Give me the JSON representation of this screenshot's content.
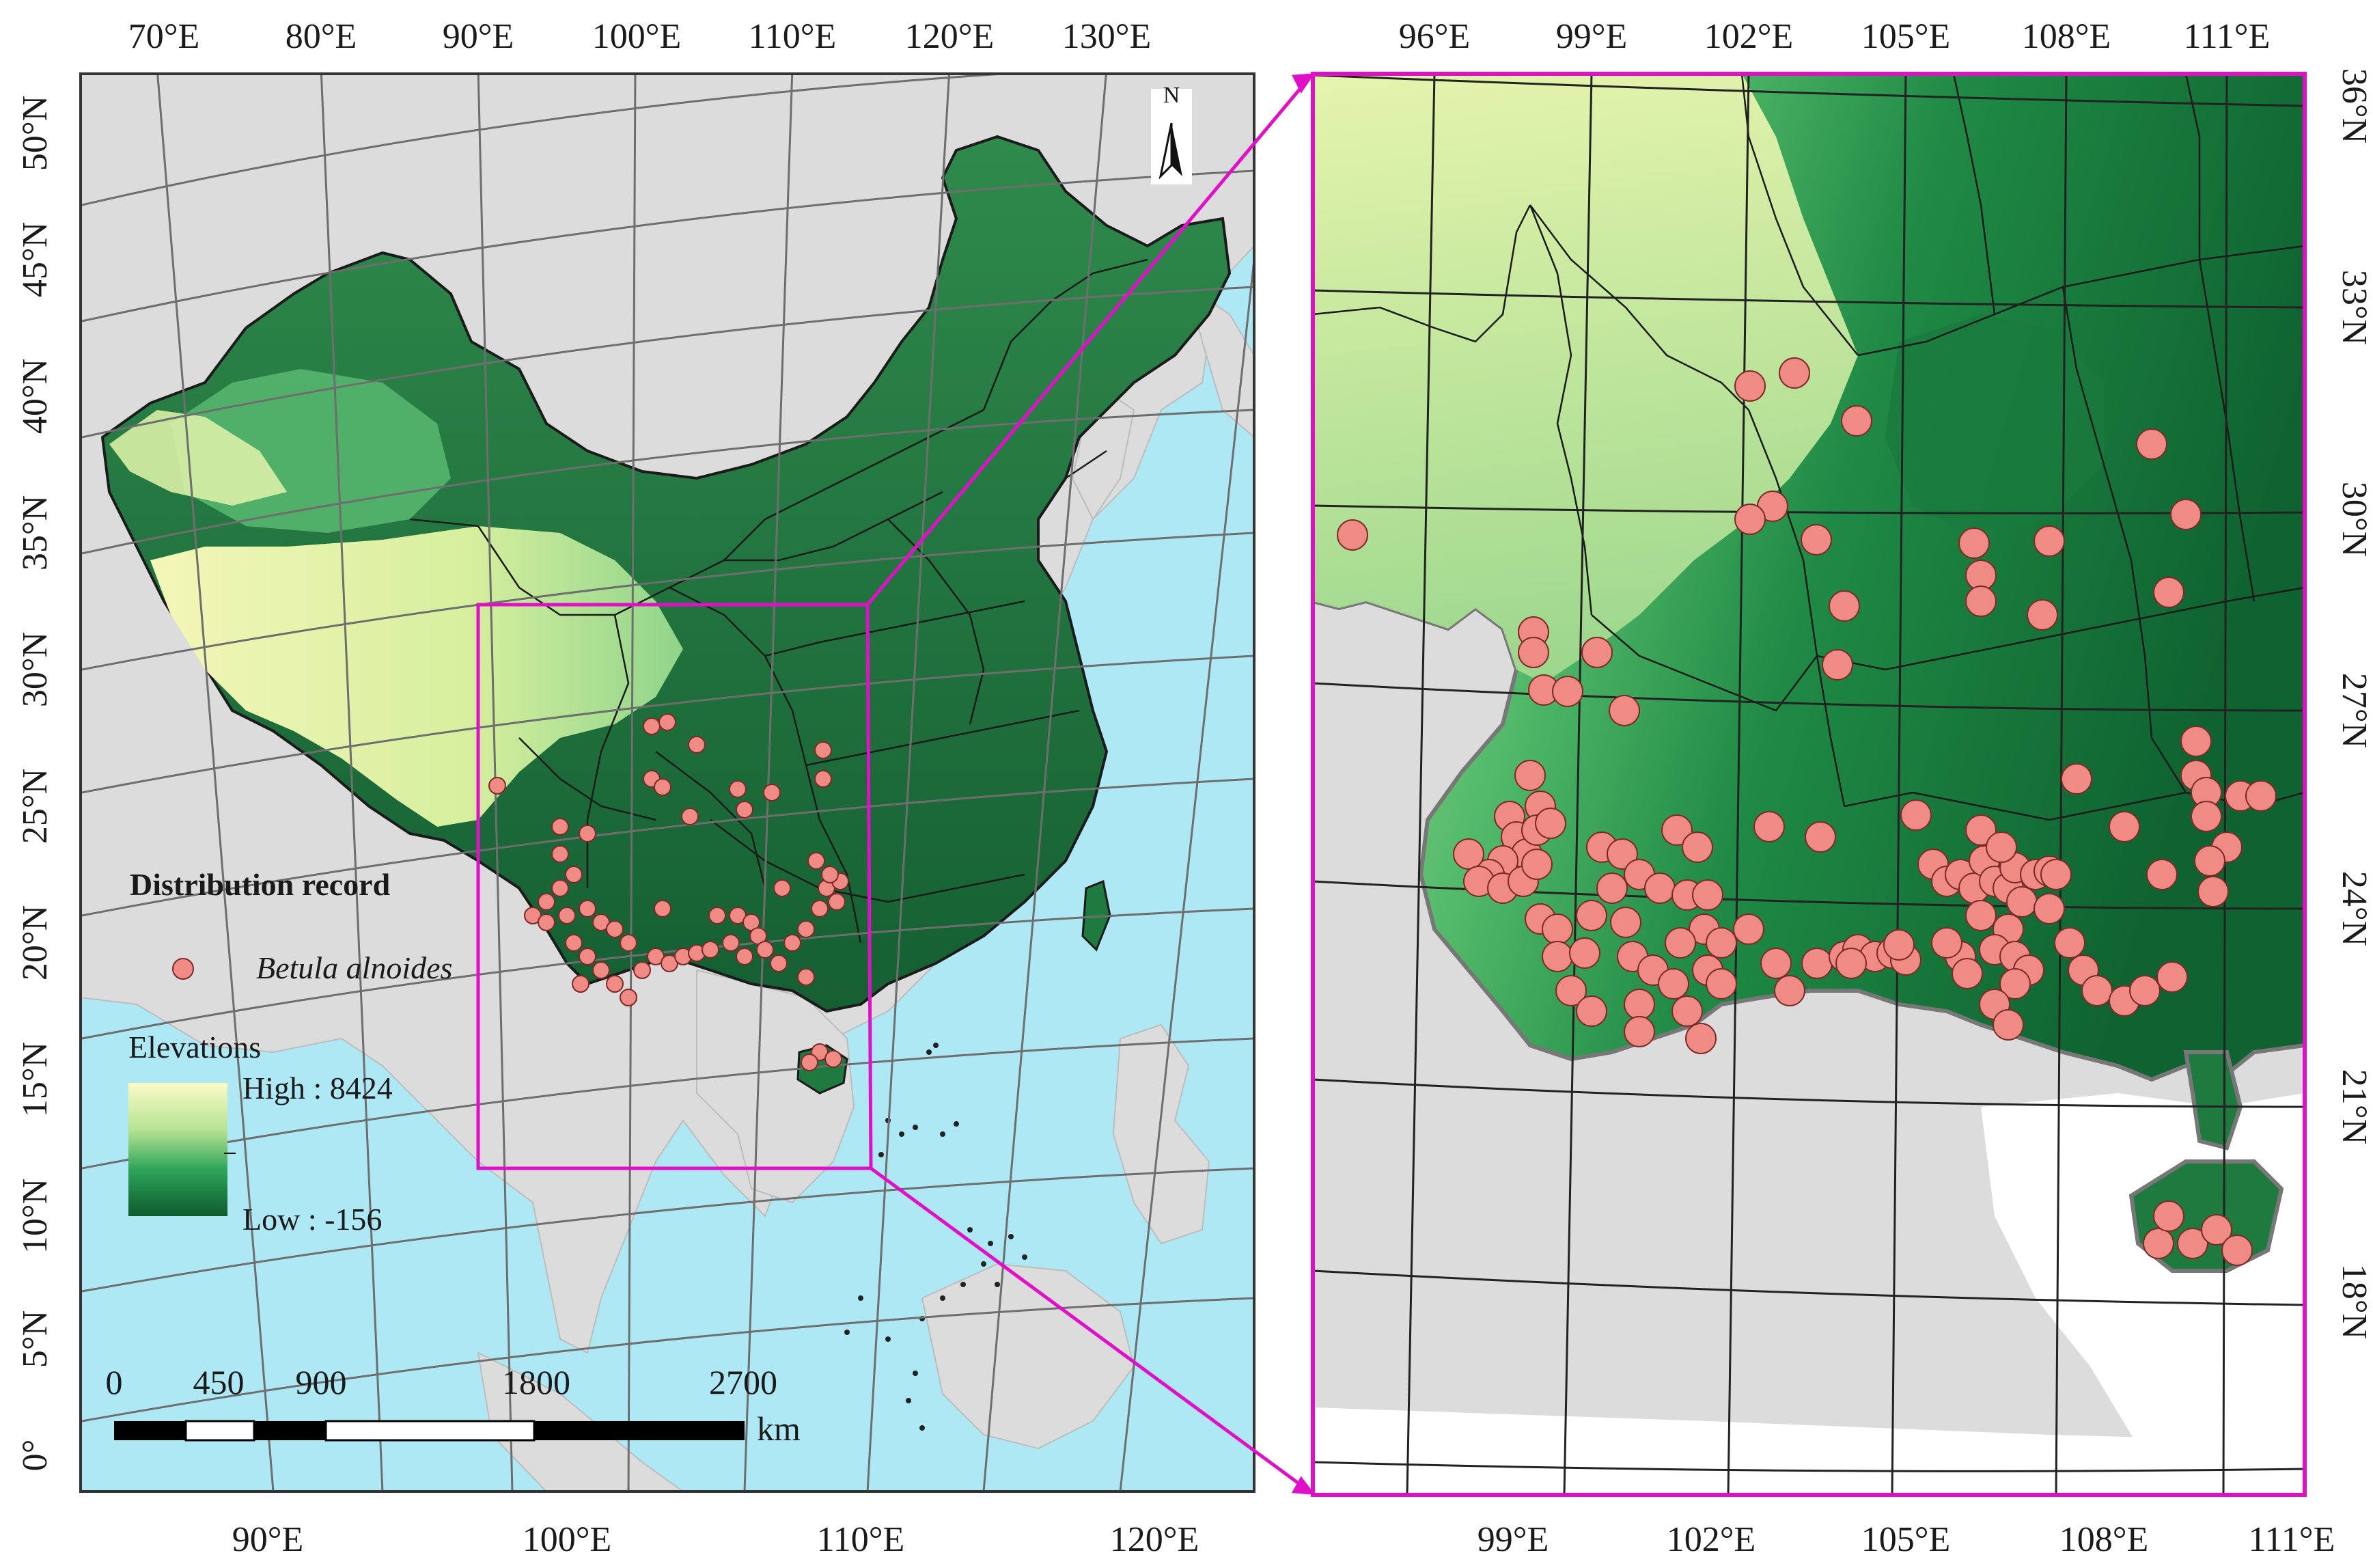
{
  "left_map": {
    "top_ticks": [
      "70°E",
      "80°E",
      "90°E",
      "100°E",
      "110°E",
      "120°E",
      "130°E"
    ],
    "bottom_ticks": [
      "90°E",
      "100°E",
      "110°E",
      "120°E"
    ],
    "left_ticks": [
      "50°N",
      "45°N",
      "40°N",
      "35°N",
      "30°N",
      "25°N",
      "20°N",
      "15°N",
      "10°N",
      "5°N",
      "0°"
    ],
    "north_label": "N",
    "legend": {
      "title": "Distribution record",
      "species": "Betula alnoides",
      "elev_title": "Elevations",
      "elev_high": "High : 8424",
      "elev_low": "Low : -156"
    },
    "scalebar": {
      "labels": [
        "0",
        "450",
        "900",
        "1800",
        "2700"
      ],
      "unit": "km"
    }
  },
  "right_map": {
    "top_ticks": [
      "96°E",
      "99°E",
      "102°E",
      "105°E",
      "108°E",
      "111°E"
    ],
    "bottom_ticks": [
      "99°E",
      "102°E",
      "105°E",
      "108°E",
      "111°E"
    ],
    "right_ticks": [
      "36°N",
      "33°N",
      "30°N",
      "27°N",
      "24°N",
      "21°N",
      "18°N"
    ]
  },
  "colors": {
    "sea": "#aee8f5",
    "land_other": "#dcdcdc",
    "elev_high": "#fbfbc6",
    "elev_mid": "#2ea55a",
    "elev_low": "#0e5b2d",
    "points": "#f08a84",
    "inset_frame": "#e010c8"
  }
}
